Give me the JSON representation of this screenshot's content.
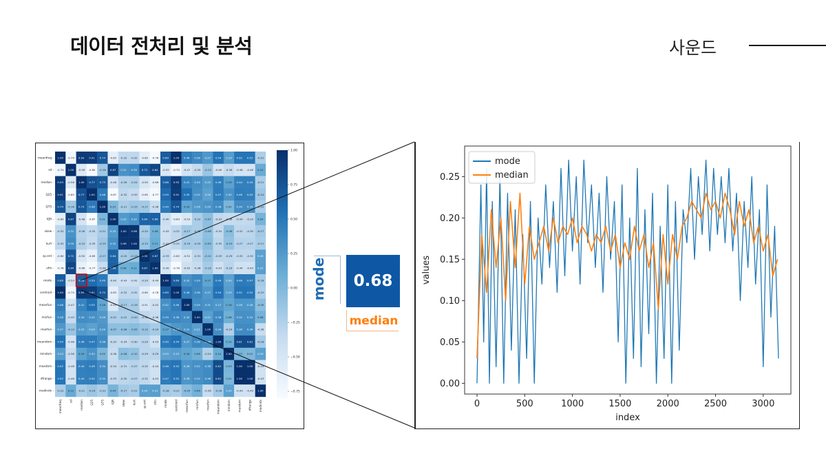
{
  "header": {
    "title": "데이터 전처리 및 분석",
    "section": "사운드"
  },
  "highlight": {
    "value": "0.68",
    "row_label": "mode",
    "col_label": "median"
  },
  "colors": {
    "heat_dark": "#08306b",
    "heat_light": "#f7fbff",
    "mode": "#1f77b4",
    "median": "#ff7f0e",
    "highlight_box": "#e00000"
  },
  "chart_data": [
    {
      "type": "heatmap",
      "labels": [
        "meanfreq",
        "sd",
        "median",
        "Q25",
        "Q75",
        "IQR",
        "skew",
        "kurt",
        "sp.ent",
        "sfm",
        "mode",
        "centroid",
        "meanfun",
        "minfun",
        "maxfun",
        "meandom",
        "mindom",
        "maxdom",
        "dfrange",
        "modindx"
      ],
      "matrix": [
        [
          1.0,
          -0.74,
          0.93,
          0.91,
          0.74,
          -0.63,
          -0.32,
          -0.32,
          -0.6,
          -0.78,
          0.69,
          1.0,
          0.46,
          0.38,
          0.27,
          0.54,
          0.23,
          0.52,
          0.52,
          -0.22
        ],
        [
          -0.74,
          1.0,
          -0.56,
          -0.85,
          -0.16,
          0.87,
          0.31,
          0.35,
          0.72,
          0.84,
          -0.53,
          -0.74,
          -0.47,
          -0.35,
          -0.13,
          -0.48,
          -0.36,
          -0.48,
          -0.48,
          0.12
        ],
        [
          0.93,
          -0.56,
          1.0,
          0.77,
          0.73,
          -0.48,
          -0.26,
          -0.24,
          -0.5,
          -0.66,
          0.68,
          0.93,
          0.41,
          0.34,
          0.25,
          0.46,
          0.19,
          0.44,
          0.44,
          -0.21
        ],
        [
          0.91,
          -0.85,
          0.77,
          1.0,
          0.48,
          -0.87,
          -0.32,
          -0.35,
          -0.65,
          -0.77,
          0.59,
          0.91,
          0.55,
          0.32,
          0.2,
          0.47,
          0.3,
          0.46,
          0.45,
          -0.14
        ],
        [
          0.74,
          -0.16,
          0.73,
          0.48,
          1.0,
          0.01,
          -0.21,
          -0.15,
          -0.17,
          -0.38,
          0.49,
          0.74,
          0.16,
          0.26,
          0.29,
          0.36,
          0.02,
          0.34,
          0.34,
          -0.22
        ],
        [
          -0.63,
          0.87,
          -0.48,
          -0.87,
          0.01,
          1.0,
          0.25,
          0.32,
          0.64,
          0.66,
          -0.4,
          -0.63,
          -0.53,
          -0.22,
          -0.07,
          -0.33,
          -0.36,
          -0.34,
          -0.33,
          0.04
        ],
        [
          -0.32,
          0.31,
          -0.26,
          -0.32,
          -0.21,
          0.25,
          1.0,
          0.98,
          -0.2,
          0.08,
          -0.43,
          -0.32,
          -0.17,
          -0.22,
          -0.08,
          -0.34,
          -0.06,
          -0.31,
          -0.3,
          -0.17
        ],
        [
          -0.32,
          0.35,
          -0.24,
          -0.35,
          -0.15,
          0.32,
          0.98,
          1.0,
          -0.13,
          0.11,
          -0.41,
          -0.32,
          -0.19,
          -0.2,
          -0.05,
          -0.3,
          -0.1,
          -0.27,
          -0.27,
          -0.21
        ],
        [
          -0.6,
          0.72,
          -0.5,
          -0.65,
          -0.17,
          0.64,
          -0.2,
          -0.13,
          1.0,
          0.87,
          -0.33,
          -0.6,
          -0.51,
          -0.31,
          -0.12,
          -0.29,
          -0.29,
          -0.32,
          -0.32,
          0.2
        ],
        [
          -0.78,
          0.84,
          -0.66,
          -0.77,
          -0.38,
          0.66,
          0.08,
          0.11,
          0.87,
          1.0,
          -0.49,
          -0.78,
          -0.42,
          -0.36,
          -0.19,
          -0.43,
          -0.29,
          -0.44,
          -0.43,
          0.21
        ],
        [
          0.69,
          -0.53,
          0.68,
          0.59,
          0.49,
          -0.4,
          -0.43,
          -0.41,
          -0.33,
          -0.49,
          1.0,
          0.69,
          0.32,
          0.39,
          0.17,
          0.49,
          0.2,
          0.48,
          0.47,
          -0.18
        ],
        [
          1.0,
          -0.74,
          0.93,
          0.91,
          0.74,
          -0.63,
          -0.32,
          -0.32,
          -0.6,
          -0.78,
          0.69,
          1.0,
          0.46,
          0.38,
          0.27,
          0.54,
          0.23,
          0.52,
          0.52,
          -0.22
        ],
        [
          0.46,
          -0.47,
          0.41,
          0.55,
          0.16,
          -0.53,
          -0.17,
          -0.19,
          -0.51,
          -0.42,
          0.32,
          0.46,
          1.0,
          0.34,
          0.31,
          0.27,
          0.16,
          0.28,
          0.28,
          -0.05
        ],
        [
          0.38,
          -0.35,
          0.34,
          0.32,
          0.26,
          -0.22,
          -0.22,
          -0.2,
          -0.31,
          -0.36,
          0.39,
          0.38,
          0.34,
          1.0,
          0.21,
          0.38,
          0.08,
          0.32,
          0.32,
          0.06
        ],
        [
          0.27,
          -0.13,
          0.25,
          0.2,
          0.29,
          -0.07,
          -0.08,
          -0.05,
          -0.12,
          -0.19,
          0.17,
          0.27,
          0.31,
          0.21,
          1.0,
          0.34,
          -0.24,
          0.36,
          0.36,
          -0.36
        ],
        [
          0.54,
          -0.48,
          0.46,
          0.47,
          0.36,
          -0.33,
          -0.34,
          -0.3,
          -0.29,
          -0.43,
          0.49,
          0.54,
          0.27,
          0.38,
          0.34,
          1.0,
          0.1,
          0.81,
          0.81,
          -0.18
        ],
        [
          0.23,
          -0.36,
          0.19,
          0.3,
          0.02,
          -0.36,
          -0.06,
          -0.1,
          -0.29,
          -0.29,
          0.2,
          0.23,
          0.16,
          0.08,
          -0.24,
          0.1,
          1.0,
          0.03,
          0.01,
          0.2
        ],
        [
          0.52,
          -0.48,
          0.44,
          0.46,
          0.34,
          -0.34,
          -0.31,
          -0.27,
          -0.32,
          -0.44,
          0.48,
          0.52,
          0.28,
          0.32,
          0.36,
          0.81,
          0.03,
          1.0,
          1.0,
          -0.43
        ],
        [
          0.52,
          -0.48,
          0.44,
          0.45,
          0.34,
          -0.33,
          -0.3,
          -0.27,
          -0.32,
          -0.43,
          0.47,
          0.52,
          0.28,
          0.32,
          0.36,
          0.81,
          0.01,
          1.0,
          1.0,
          -0.43
        ],
        [
          -0.22,
          0.12,
          -0.21,
          -0.14,
          -0.22,
          0.04,
          -0.17,
          -0.21,
          0.2,
          0.21,
          -0.18,
          -0.22,
          -0.05,
          0.06,
          -0.36,
          -0.18,
          0.2,
          -0.43,
          -0.43,
          1.0
        ]
      ],
      "colorbar_ticks": [
        "1.00",
        "0.75",
        "0.50",
        "0.25",
        "0.00",
        "−0.25",
        "−0.50",
        "−0.75"
      ],
      "vmin": -0.8,
      "vmax": 1.0,
      "highlight_cell": {
        "row": "mode",
        "col": "median"
      }
    },
    {
      "type": "line",
      "xlabel": "index",
      "ylabel": "values",
      "xlim": [
        -130,
        3290
      ],
      "ylim": [
        -0.013,
        0.287
      ],
      "xticks": [
        0,
        500,
        1000,
        1500,
        2000,
        2500,
        3000
      ],
      "yticks": [
        "0.00",
        "0.05",
        "0.10",
        "0.15",
        "0.20",
        "0.25"
      ],
      "legend": "top-left",
      "series": [
        {
          "name": "mode",
          "x": [
            0,
            40,
            70,
            100,
            130,
            160,
            200,
            240,
            280,
            320,
            360,
            400,
            440,
            480,
            520,
            560,
            600,
            640,
            680,
            720,
            760,
            800,
            840,
            880,
            920,
            960,
            1000,
            1040,
            1080,
            1120,
            1160,
            1200,
            1240,
            1280,
            1320,
            1360,
            1400,
            1440,
            1480,
            1520,
            1560,
            1600,
            1640,
            1680,
            1720,
            1760,
            1800,
            1840,
            1880,
            1920,
            1960,
            2000,
            2040,
            2080,
            2120,
            2160,
            2200,
            2240,
            2280,
            2320,
            2360,
            2400,
            2440,
            2480,
            2520,
            2560,
            2600,
            2640,
            2680,
            2720,
            2760,
            2800,
            2840,
            2880,
            2920,
            2960,
            3000,
            3040,
            3080,
            3120,
            3160
          ],
          "y": [
            0.0,
            0.24,
            0.05,
            0.26,
            0.0,
            0.22,
            0.02,
            0.25,
            0.0,
            0.23,
            0.04,
            0.21,
            0.0,
            0.18,
            0.03,
            0.22,
            0.0,
            0.2,
            0.12,
            0.24,
            0.14,
            0.22,
            0.11,
            0.26,
            0.13,
            0.27,
            0.16,
            0.25,
            0.12,
            0.27,
            0.17,
            0.24,
            0.14,
            0.23,
            0.11,
            0.25,
            0.15,
            0.22,
            0.05,
            0.24,
            0.0,
            0.2,
            0.03,
            0.26,
            0.02,
            0.21,
            0.06,
            0.23,
            0.0,
            0.19,
            0.03,
            0.24,
            0.0,
            0.22,
            0.04,
            0.21,
            0.17,
            0.26,
            0.15,
            0.25,
            0.18,
            0.27,
            0.16,
            0.26,
            0.18,
            0.25,
            0.17,
            0.26,
            0.16,
            0.23,
            0.1,
            0.22,
            0.14,
            0.25,
            0.12,
            0.21,
            0.02,
            0.24,
            0.08,
            0.19,
            0.03
          ]
        },
        {
          "name": "median",
          "x": [
            0,
            50,
            100,
            150,
            200,
            250,
            300,
            350,
            400,
            450,
            500,
            550,
            600,
            650,
            700,
            750,
            800,
            850,
            900,
            950,
            1000,
            1050,
            1100,
            1150,
            1200,
            1250,
            1300,
            1350,
            1400,
            1450,
            1500,
            1550,
            1600,
            1650,
            1700,
            1750,
            1800,
            1850,
            1900,
            1950,
            2000,
            2050,
            2100,
            2150,
            2200,
            2250,
            2300,
            2350,
            2400,
            2450,
            2500,
            2550,
            2600,
            2650,
            2700,
            2750,
            2800,
            2850,
            2900,
            2950,
            3000,
            3050,
            3100,
            3150
          ],
          "y": [
            0.03,
            0.18,
            0.11,
            0.21,
            0.14,
            0.2,
            0.1,
            0.22,
            0.14,
            0.23,
            0.12,
            0.19,
            0.15,
            0.17,
            0.19,
            0.16,
            0.2,
            0.17,
            0.19,
            0.18,
            0.2,
            0.17,
            0.19,
            0.18,
            0.16,
            0.18,
            0.17,
            0.19,
            0.16,
            0.18,
            0.14,
            0.17,
            0.15,
            0.19,
            0.16,
            0.18,
            0.14,
            0.17,
            0.09,
            0.18,
            0.12,
            0.18,
            0.15,
            0.19,
            0.2,
            0.22,
            0.21,
            0.2,
            0.23,
            0.21,
            0.22,
            0.2,
            0.23,
            0.21,
            0.18,
            0.22,
            0.19,
            0.21,
            0.17,
            0.19,
            0.16,
            0.18,
            0.13,
            0.15
          ]
        }
      ]
    }
  ]
}
